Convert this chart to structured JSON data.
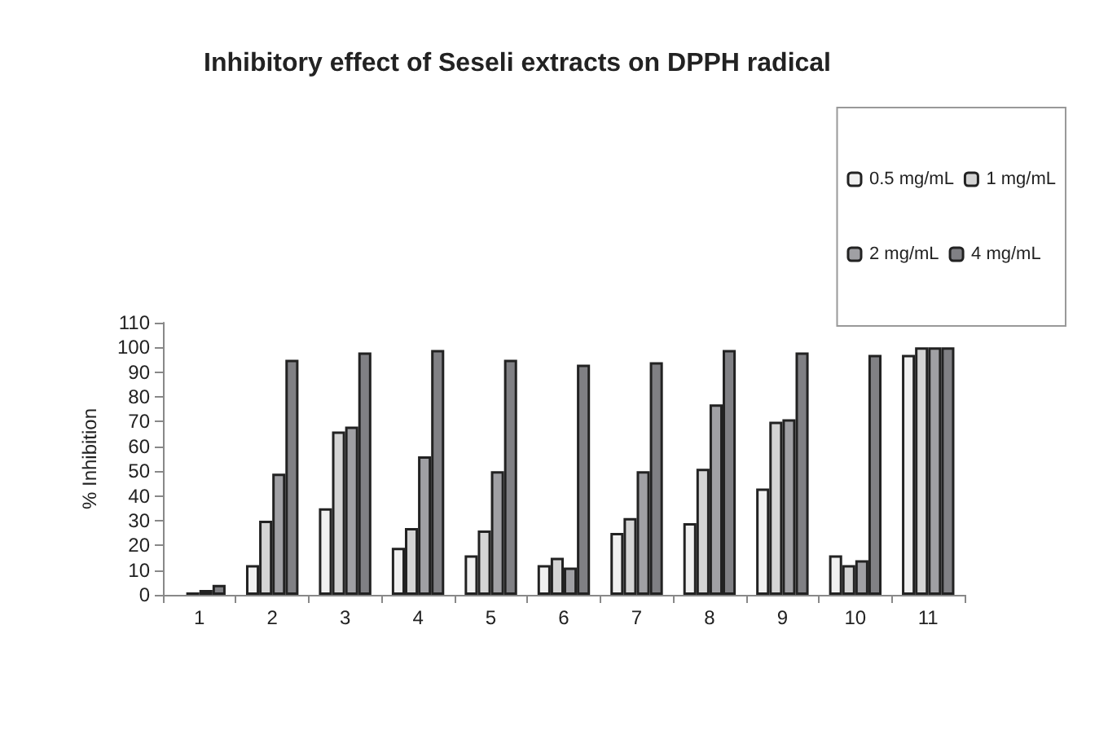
{
  "chart_data": {
    "type": "bar",
    "title": "Inhibitory effect of Seseli extracts on DPPH radical",
    "ylabel": "% Inhibition",
    "categories": [
      "1",
      "2",
      "3",
      "4",
      "5",
      "6",
      "7",
      "8",
      "9",
      "10",
      "11"
    ],
    "series": [
      {
        "name": "0.5 mg/mL",
        "color": "#f0f0f0",
        "values": [
          null,
          12,
          35,
          19,
          16,
          12,
          25,
          29,
          43,
          16,
          97
        ]
      },
      {
        "name": "1 mg/mL",
        "color": "#d4d4d4",
        "values": [
          1,
          30,
          66,
          27,
          26,
          15,
          31,
          51,
          70,
          12,
          100
        ]
      },
      {
        "name": "2 mg/mL",
        "color": "#a0a0a4",
        "values": [
          2,
          49,
          68,
          56,
          50,
          11,
          50,
          77,
          71,
          14,
          100
        ]
      },
      {
        "name": "4 mg/mL",
        "color": "#808084",
        "values": [
          4,
          95,
          98,
          99,
          95,
          93,
          94,
          99,
          98,
          97,
          100
        ]
      }
    ],
    "ylim": [
      0,
      110
    ],
    "yticks": [
      0,
      10,
      20,
      30,
      40,
      50,
      60,
      70,
      80,
      90,
      100,
      110
    ],
    "grid": false,
    "legend": "top right"
  }
}
